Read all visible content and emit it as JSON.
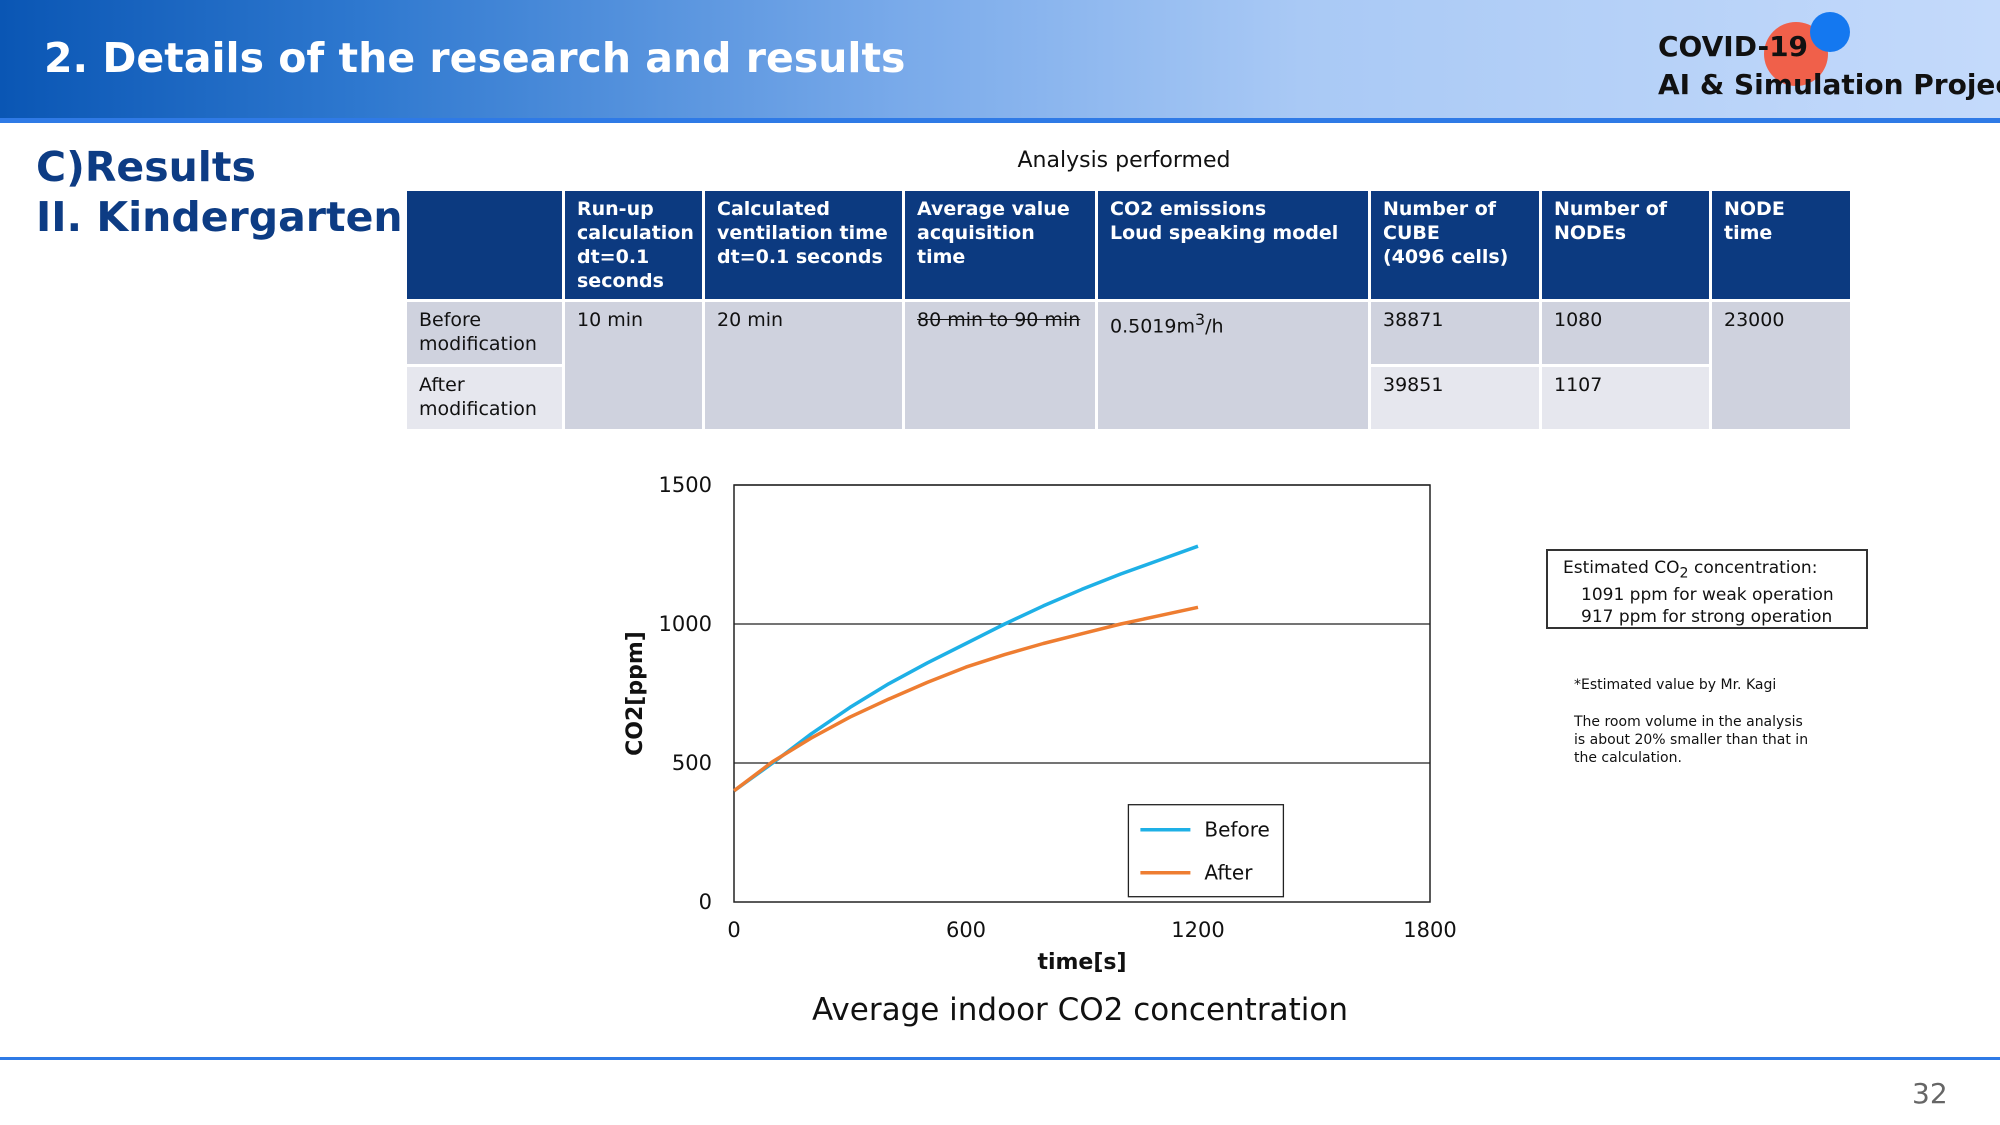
{
  "header": {
    "title": "2. Details of the research and results",
    "logo_line1": "COVID-19",
    "logo_line2": "AI & Simulation Project"
  },
  "section": {
    "line1": "C)Results",
    "line2": "II. Kindergarten"
  },
  "table": {
    "caption": "Analysis performed",
    "headers": [
      "",
      "Run-up calculation dt=0.1 seconds",
      "Calculated ventilation time dt=0.1 seconds",
      "Average value acquisition time",
      "CO2 emissions Loud speaking model",
      "Number of CUBE (4096 cells)",
      "Number of NODEs",
      "NODE time"
    ],
    "header_lines": {
      "runup": [
        "Run-up",
        "calculation",
        "dt=0.1",
        "seconds"
      ],
      "ventilation": [
        "Calculated",
        "ventilation time",
        "dt=0.1 seconds"
      ],
      "average": [
        "Average value",
        "acquisition time"
      ],
      "co2": [
        "CO2 emissions",
        "Loud speaking model"
      ],
      "cube": [
        "Number of",
        "CUBE",
        "(4096 cells)"
      ],
      "nodes": [
        "Number of",
        "NODEs"
      ],
      "node_time": [
        "NODE time"
      ]
    },
    "rows": [
      {
        "label": "Before modification",
        "runup": "10 min",
        "ventilation": "20 min",
        "average": "80 min to 90 min",
        "co2_value": "0.5019m",
        "co2_sup": "3",
        "co2_unit": "/h",
        "cube": "38871",
        "nodes": "1080",
        "node_time": "23000"
      },
      {
        "label": "After modification",
        "cube": "39851",
        "nodes": "1107"
      }
    ]
  },
  "chart_data": {
    "type": "line",
    "title": "Average indoor CO2 concentration",
    "xlabel": "time[s]",
    "ylabel": "CO2[ppm]",
    "xlim": [
      0,
      1800
    ],
    "ylim": [
      0,
      1500
    ],
    "xticks": [
      0,
      600,
      1200,
      1800
    ],
    "yticks": [
      0,
      500,
      1000,
      1500
    ],
    "grid": "horizontal",
    "legend_position": "bottom-right",
    "series": [
      {
        "name": "Before",
        "color": "#1eb0e6",
        "x": [
          0,
          100,
          200,
          300,
          400,
          500,
          600,
          700,
          800,
          900,
          1000,
          1100,
          1200
        ],
        "y": [
          400,
          500,
          605,
          700,
          785,
          860,
          930,
          1000,
          1065,
          1125,
          1180,
          1230,
          1280
        ]
      },
      {
        "name": "After",
        "color": "#ee7d31",
        "x": [
          0,
          100,
          200,
          300,
          400,
          500,
          600,
          700,
          800,
          900,
          1000,
          1100,
          1200
        ],
        "y": [
          400,
          505,
          590,
          665,
          730,
          790,
          845,
          890,
          930,
          965,
          1000,
          1030,
          1060
        ]
      }
    ]
  },
  "estimate": {
    "line1_prefix": "Estimated CO",
    "line1_sub": "2",
    "line1_suffix": " concentration:",
    "line2": "1091 ppm for weak operation",
    "line3": "917 ppm for strong operation"
  },
  "notes": {
    "note1": "*Estimated value by Mr. Kagi",
    "note2_lines": [
      "The room volume in the analysis",
      "is about 20% smaller than that in",
      "the calculation."
    ]
  },
  "page_number": "32",
  "colors": {
    "header_blue": "#0a56b4",
    "table_header": "#0c3a80",
    "section_text": "#0d3c84",
    "line_blue": "#2f7ae6"
  }
}
